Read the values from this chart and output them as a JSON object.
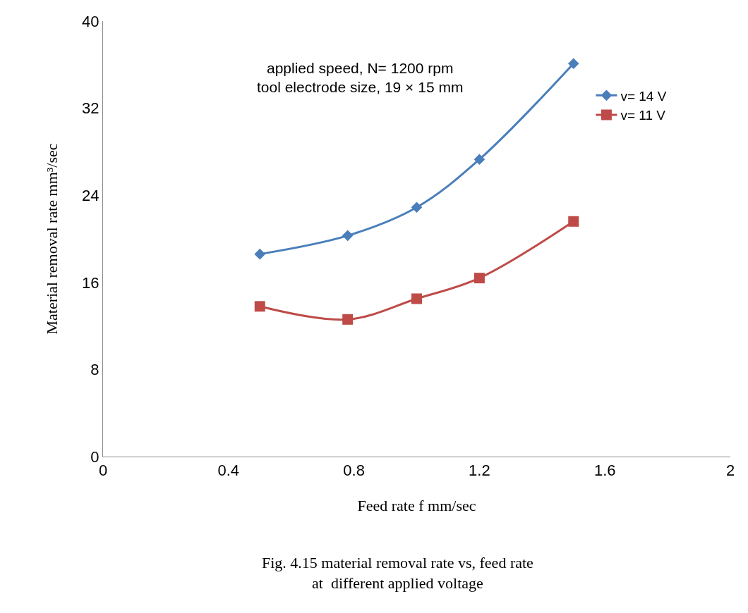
{
  "chart_data": {
    "type": "line",
    "xlabel": "Feed rate f mm/sec",
    "ylabel": "Material removal rate mm³/sec",
    "annotations": [
      "applied speed, N= 1200 rpm",
      "tool electrode size, 19 × 15 mm",
      "Fig. 4.15 material removal rate vs, feed rate\nat  different applied voltage"
    ],
    "x": [
      0.5,
      0.78,
      1.0,
      1.2,
      1.5
    ],
    "series": [
      {
        "name": "v= 14 V",
        "color": "#4a7ebb",
        "marker": "diamond",
        "values": [
          18.6,
          20.3,
          22.9,
          27.3,
          36.1
        ]
      },
      {
        "name": "v= 11 V",
        "color": "#be4b48",
        "marker": "square",
        "values": [
          13.8,
          12.6,
          14.5,
          16.4,
          21.6
        ]
      }
    ],
    "xlim": [
      0,
      2
    ],
    "xticks": [
      0,
      0.4,
      0.8,
      1.2,
      1.6,
      2
    ],
    "ylim": [
      0,
      40
    ],
    "yticks": [
      0,
      8,
      16,
      24,
      32,
      40
    ],
    "grid": false,
    "legend": "top right",
    "line_style": "solid"
  }
}
